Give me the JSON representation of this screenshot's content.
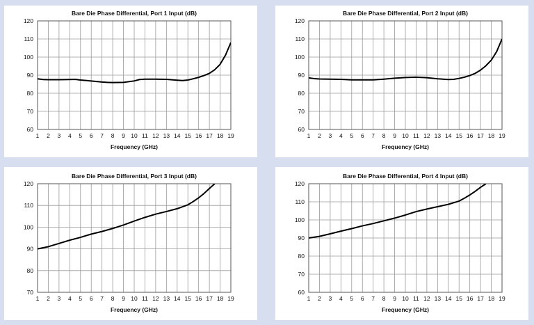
{
  "chart_data": [
    {
      "type": "line",
      "title": "Bare Die Phase Differential, Port 1 Input (dB)",
      "xlabel": "Frequency (GHz)",
      "ylabel": "",
      "xlim": [
        1,
        19
      ],
      "ylim": [
        60,
        120
      ],
      "xticks": [
        "1",
        "2",
        "3",
        "4",
        "5",
        "6",
        "7",
        "8",
        "9",
        "10",
        "11",
        "12",
        "13",
        "14",
        "15",
        "16",
        "17",
        "18",
        "19"
      ],
      "yticks": [
        "60",
        "70",
        "80",
        "90",
        "100",
        "110",
        "120"
      ],
      "grid": true,
      "series": [
        {
          "x": [
            1,
            1.5,
            2,
            3,
            4,
            4.5,
            5,
            6,
            7,
            7.5,
            8,
            9,
            10,
            10.5,
            11,
            12,
            13,
            14,
            14.5,
            15,
            15.5,
            16,
            16.5,
            17,
            17.5,
            18,
            18.5,
            19
          ],
          "values": [
            88,
            87.6,
            87.5,
            87.5,
            87.6,
            87.7,
            87.3,
            86.8,
            86.2,
            86,
            85.9,
            86,
            86.8,
            87.6,
            87.8,
            87.8,
            87.7,
            87.2,
            87,
            87.3,
            88,
            88.8,
            89.8,
            91,
            93,
            96,
            101,
            108
          ]
        }
      ]
    },
    {
      "type": "line",
      "title": "Bare Die Phase Differential, Port 2 Input (dB)",
      "xlabel": "Frequency (GHz)",
      "ylabel": "",
      "xlim": [
        1,
        19
      ],
      "ylim": [
        60,
        120
      ],
      "xticks": [
        "1",
        "2",
        "3",
        "4",
        "5",
        "6",
        "7",
        "8",
        "9",
        "10",
        "11",
        "12",
        "13",
        "14",
        "15",
        "16",
        "17",
        "18",
        "19"
      ],
      "yticks": [
        "60",
        "70",
        "80",
        "90",
        "100",
        "110",
        "120"
      ],
      "grid": true,
      "series": [
        {
          "x": [
            1,
            1.5,
            2,
            3,
            4,
            5,
            6,
            7,
            8,
            9,
            10,
            11,
            12,
            13,
            14,
            14.5,
            15,
            15.5,
            16,
            16.5,
            17,
            17.5,
            18,
            18.5,
            19
          ],
          "values": [
            88.5,
            88.1,
            87.9,
            87.8,
            87.7,
            87.4,
            87.4,
            87.4,
            87.8,
            88.3,
            88.7,
            88.9,
            88.6,
            88,
            87.6,
            87.7,
            88.2,
            88.9,
            89.8,
            91,
            92.8,
            95.2,
            98.3,
            103,
            110
          ]
        }
      ]
    },
    {
      "type": "line",
      "title": "Bare Die Phase Differential, Port 3 Input (dB)",
      "xlabel": "Frequency (GHz)",
      "ylabel": "",
      "xlim": [
        1,
        19
      ],
      "ylim": [
        70,
        120
      ],
      "xticks": [
        "1",
        "2",
        "3",
        "4",
        "5",
        "6",
        "7",
        "8",
        "9",
        "10",
        "11",
        "12",
        "13",
        "14",
        "15",
        "16",
        "17",
        "18",
        "19"
      ],
      "yticks": [
        "70",
        "80",
        "90",
        "100",
        "110",
        "120"
      ],
      "grid": true,
      "series": [
        {
          "x": [
            1,
            2,
            3,
            4,
            5,
            6,
            7,
            8,
            9,
            10,
            11,
            12,
            13,
            14,
            15,
            15.5,
            16,
            16.5,
            17,
            17.5
          ],
          "values": [
            90,
            91,
            92.5,
            94,
            95.3,
            96.8,
            98,
            99.4,
            101,
            102.8,
            104.5,
            106,
            107.2,
            108.5,
            110.3,
            111.8,
            113.5,
            115.5,
            117.8,
            120
          ]
        }
      ]
    },
    {
      "type": "line",
      "title": "Bare Die Phase Differential, Port 4 Input (dB)",
      "xlabel": "Frequency (GHz)",
      "ylabel": "",
      "xlim": [
        1,
        19
      ],
      "ylim": [
        60,
        120
      ],
      "xticks": [
        "1",
        "2",
        "3",
        "4",
        "5",
        "6",
        "7",
        "8",
        "9",
        "10",
        "11",
        "12",
        "13",
        "14",
        "15",
        "16",
        "17",
        "18",
        "19"
      ],
      "yticks": [
        "60",
        "70",
        "80",
        "90",
        "100",
        "110",
        "120"
      ],
      "grid": true,
      "series": [
        {
          "x": [
            1,
            2,
            3,
            4,
            5,
            6,
            7,
            8,
            9,
            10,
            11,
            12,
            13,
            14,
            15,
            15.5,
            16,
            16.5,
            17,
            17.5
          ],
          "values": [
            90,
            90.9,
            92.3,
            93.8,
            95.2,
            96.7,
            98,
            99.5,
            101,
            102.7,
            104.6,
            106,
            107.3,
            108.6,
            110.4,
            112,
            113.8,
            115.8,
            118,
            120
          ]
        }
      ]
    }
  ]
}
